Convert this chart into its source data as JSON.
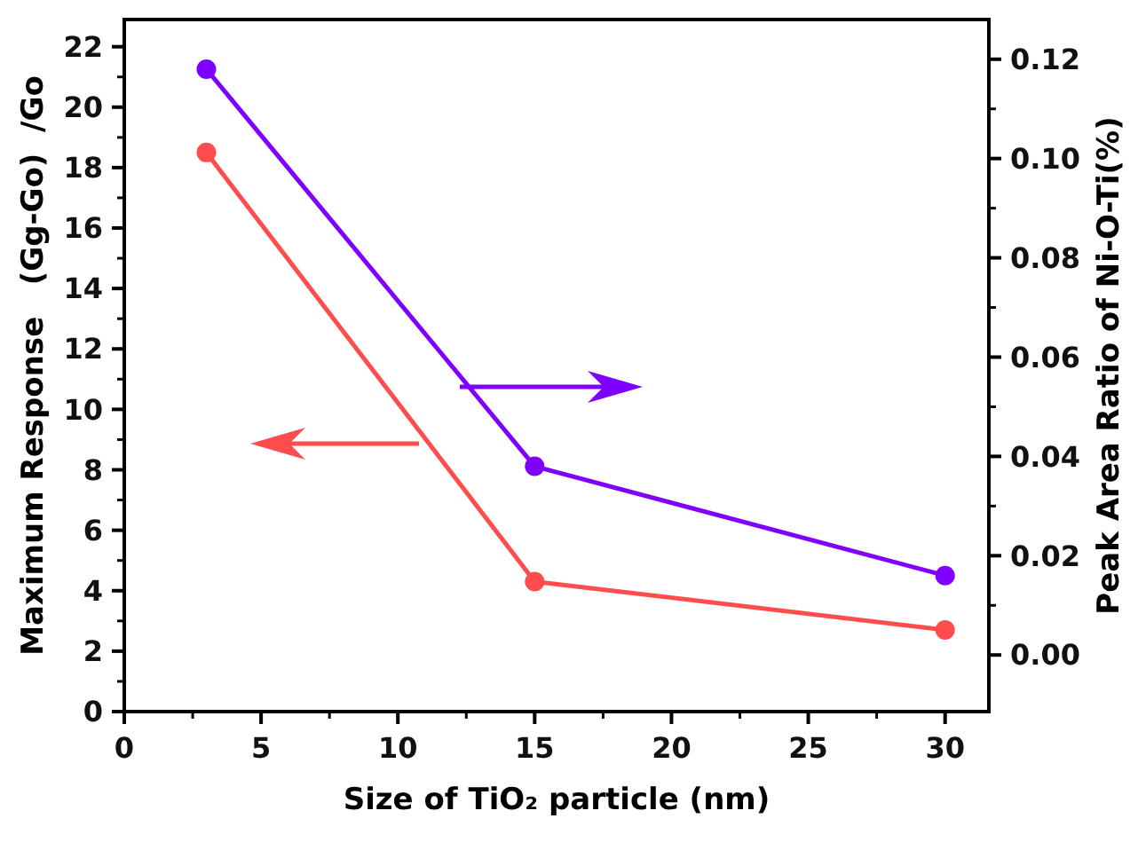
{
  "chart_data": {
    "type": "line",
    "xlabel": "Size of TiO₂ particle (nm)",
    "ylabel": "Maximum Response   (Gg-Go)  /Go",
    "y2label": "Peak Area Ratio of Ni-O-Ti(%)",
    "x": [
      3,
      15,
      30
    ],
    "series": [
      {
        "color": "#ff4d4d",
        "values": [
          18.5,
          4.3,
          2.7
        ]
      },
      {
        "color": "#7f00ff",
        "values": [
          0.118,
          0.038,
          0.016
        ],
        "axis": "y2"
      }
    ],
    "xlim": [
      0,
      31.6
    ],
    "xticks": [
      0,
      5,
      10,
      15,
      20,
      25,
      30
    ],
    "ylim": [
      0,
      22.9
    ],
    "yticks": [
      0,
      2,
      4,
      6,
      8,
      10,
      12,
      14,
      16,
      18,
      20,
      22
    ],
    "y2lim": [
      -0.0114,
      0.128
    ],
    "y2ticks": [
      {
        "value": 0,
        "label": "0.00"
      },
      {
        "value": 0.02,
        "label": "0.02"
      },
      {
        "value": 0.04,
        "label": "0.04"
      },
      {
        "value": 0.06,
        "label": "0.06"
      },
      {
        "value": 0.08,
        "label": "0.08"
      },
      {
        "value": 0.1,
        "label": "0.10"
      },
      {
        "value": 0.12,
        "label": "0.12"
      }
    ],
    "grid": false,
    "marker": "circle",
    "line_style": "solid"
  }
}
